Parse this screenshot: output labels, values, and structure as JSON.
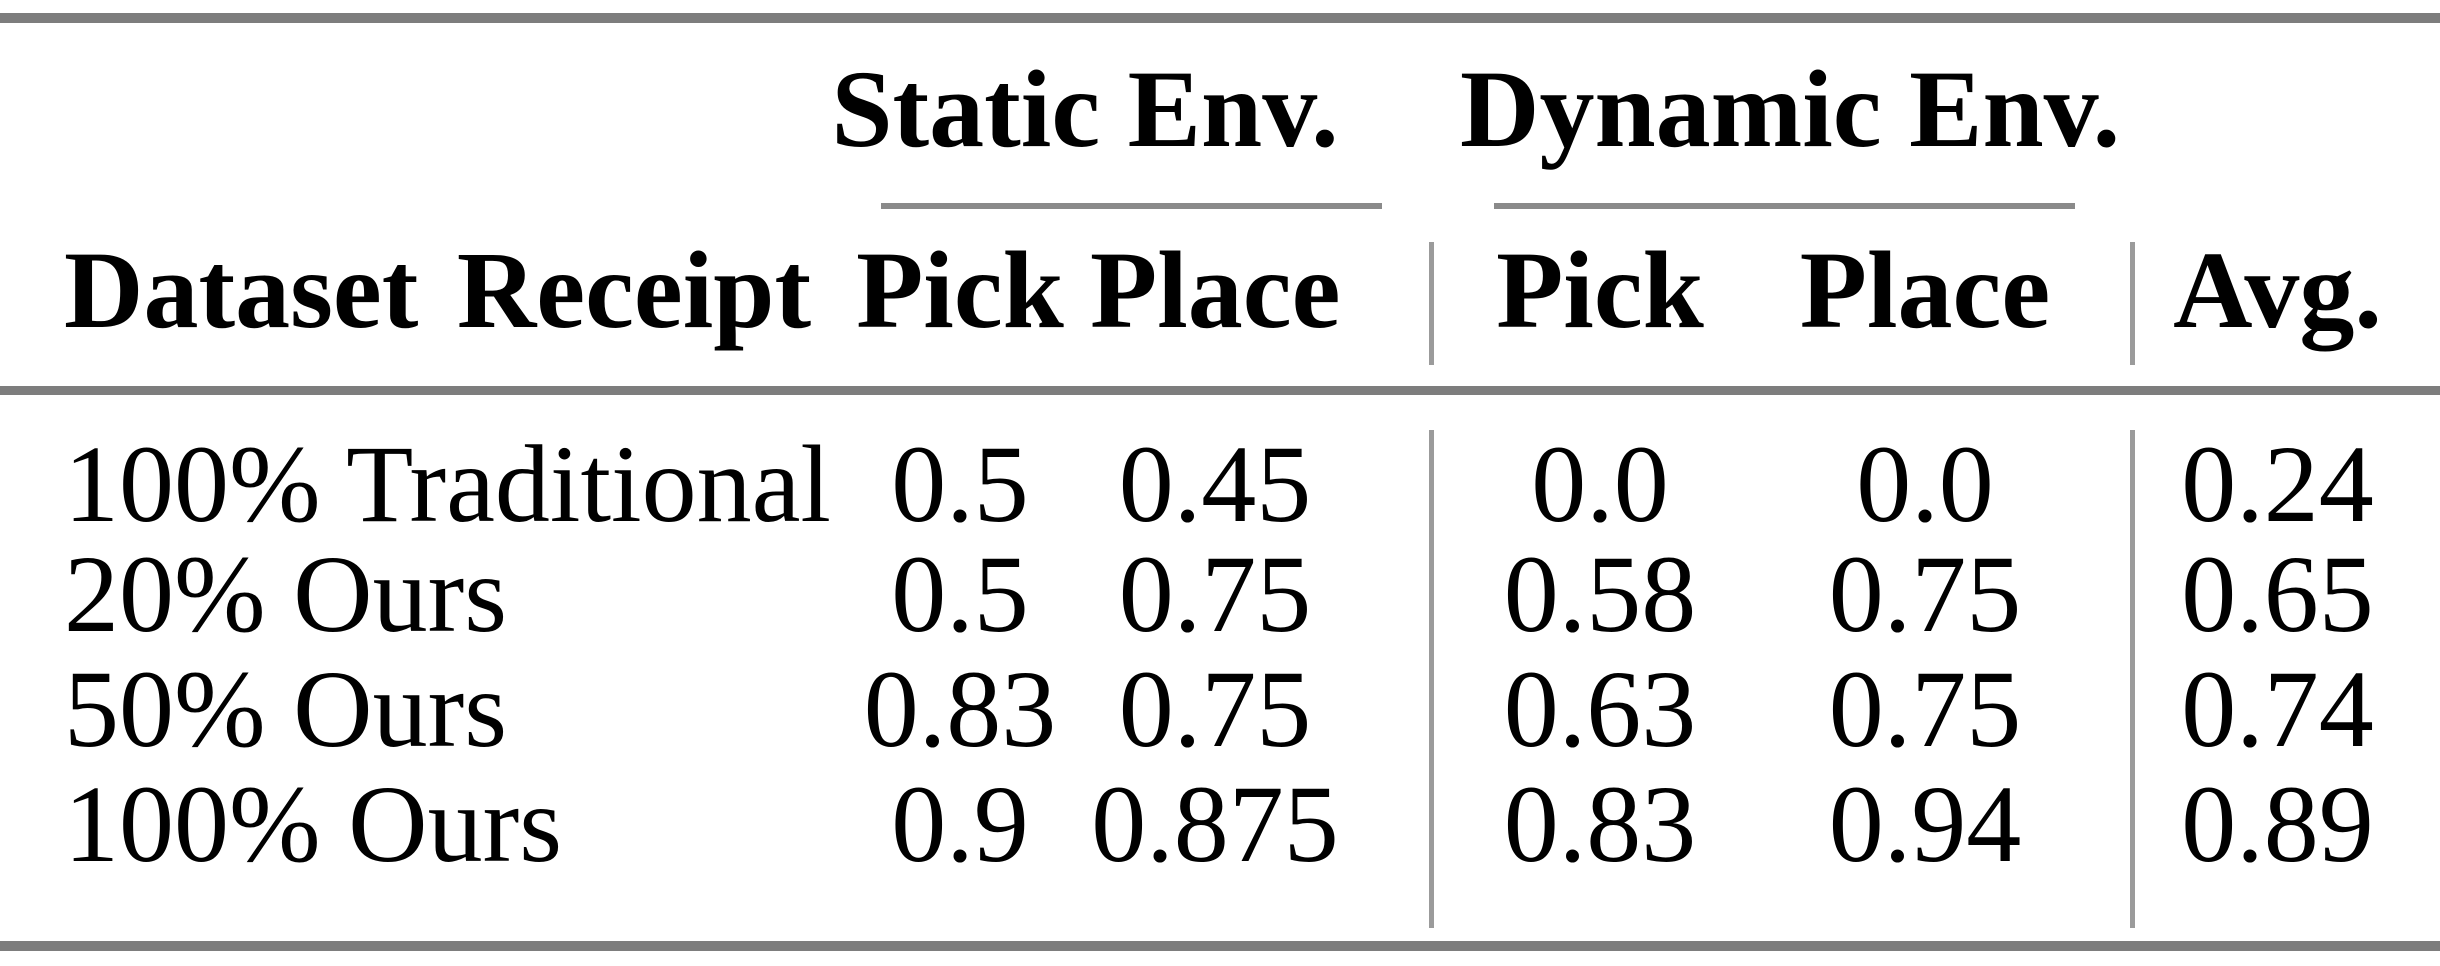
{
  "page": {
    "background": "#ffffff",
    "text_color": "#000000"
  },
  "colors": {
    "heavy_rule": "#7d7d7d",
    "cmidrule": "#8a8a8a",
    "vertical_rule": "#9b9b9b"
  },
  "table": {
    "group_headers": {
      "static": "Static Env.",
      "dynamic": "Dynamic Env."
    },
    "column_headers": {
      "dataset": "Dataset Receipt",
      "static_pick": "Pick",
      "static_place": "Place",
      "dynamic_pick": "Pick",
      "dynamic_place": "Place",
      "avg": "Avg."
    },
    "rows": [
      {
        "label": "100% Traditional",
        "cells": [
          "0.5",
          "0.45",
          "0.0",
          "0.0",
          "0.24"
        ]
      },
      {
        "label": "20% Ours",
        "cells": [
          "0.5",
          "0.75",
          "0.58",
          "0.75",
          "0.65"
        ]
      },
      {
        "label": "50% Ours",
        "cells": [
          "0.83",
          "0.75",
          "0.63",
          "0.75",
          "0.74"
        ]
      },
      {
        "label": "100% Ours",
        "cells": [
          "0.9",
          "0.875",
          "0.83",
          "0.94",
          "0.89"
        ]
      }
    ]
  }
}
